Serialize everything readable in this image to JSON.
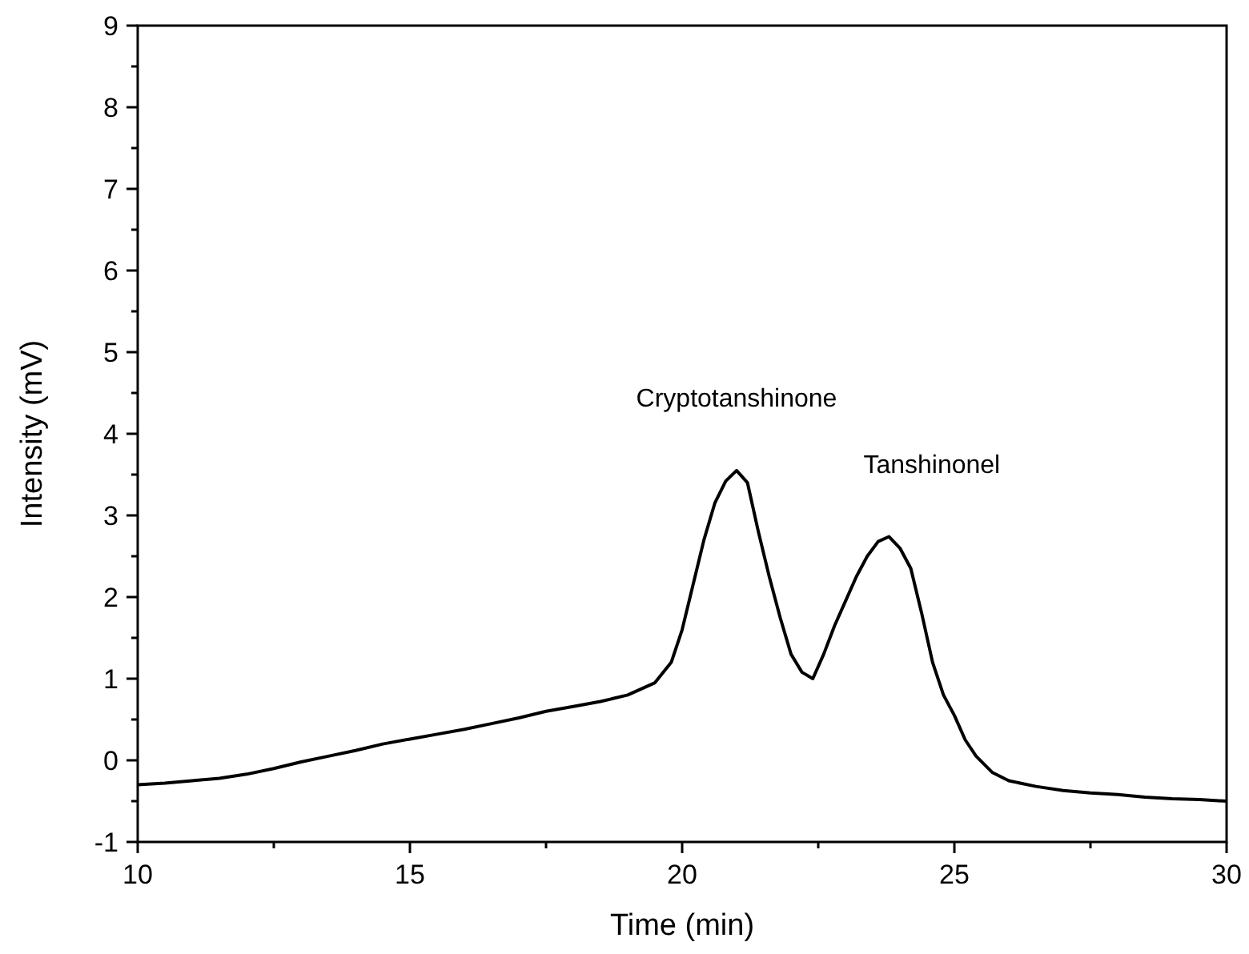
{
  "chart_data": {
    "type": "line",
    "xlabel": "Time (min)",
    "ylabel": "Intensity (mV)",
    "xlim": [
      10,
      30
    ],
    "ylim": [
      -1,
      9
    ],
    "xticks": [
      10,
      {
        "value": 12.5,
        "label": null
      },
      15,
      {
        "value": 17.5,
        "label": null
      },
      20,
      {
        "value": 22.5,
        "label": null
      },
      25,
      {
        "value": 27.5,
        "label": null
      },
      30
    ],
    "yticks": [
      -1,
      {
        "value": -0.5,
        "label": null
      },
      0,
      {
        "value": 0.5,
        "label": null
      },
      1,
      {
        "value": 1.5,
        "label": null
      },
      2,
      {
        "value": 2.5,
        "label": null
      },
      3,
      {
        "value": 3.5,
        "label": null
      },
      4,
      {
        "value": 4.5,
        "label": null
      },
      5,
      {
        "value": 5.5,
        "label": null
      },
      6,
      {
        "value": 6.5,
        "label": null
      },
      7,
      {
        "value": 7.5,
        "label": null
      },
      8,
      {
        "value": 8.5,
        "label": null
      },
      9
    ],
    "grid": false,
    "marker": "none",
    "line_style": "solid",
    "annotations": [
      {
        "text": "Cryptotanshinone",
        "x": 21.0,
        "y": 3.55
      },
      {
        "text": "Tanshinonel",
        "x": 23.8,
        "y": 2.74
      }
    ],
    "series": [
      {
        "color": "#000000",
        "x": [
          10,
          10.5,
          11,
          11.5,
          12,
          12.5,
          13,
          13.5,
          14,
          14.5,
          15,
          15.5,
          16,
          16.5,
          17,
          17.5,
          18,
          18.5,
          19,
          19.5,
          19.8,
          20,
          20.2,
          20.4,
          20.6,
          20.8,
          21,
          21.2,
          21.4,
          21.6,
          21.8,
          22,
          22.2,
          22.4,
          22.6,
          22.8,
          23,
          23.2,
          23.4,
          23.6,
          23.8,
          24,
          24.2,
          24.4,
          24.6,
          24.8,
          25,
          25.2,
          25.4,
          25.7,
          26,
          26.5,
          27,
          27.5,
          28,
          28.5,
          29,
          29.5,
          30
        ],
        "values": [
          -0.3,
          -0.28,
          -0.25,
          -0.22,
          -0.17,
          -0.1,
          -0.02,
          0.05,
          0.12,
          0.2,
          0.26,
          0.32,
          0.38,
          0.45,
          0.52,
          0.6,
          0.66,
          0.72,
          0.8,
          0.95,
          1.2,
          1.6,
          2.15,
          2.7,
          3.15,
          3.42,
          3.55,
          3.4,
          2.8,
          2.25,
          1.75,
          1.3,
          1.08,
          1.0,
          1.3,
          1.65,
          1.95,
          2.25,
          2.5,
          2.68,
          2.74,
          2.6,
          2.35,
          1.8,
          1.2,
          0.8,
          0.55,
          0.25,
          0.05,
          -0.15,
          -0.25,
          -0.32,
          -0.37,
          -0.4,
          -0.42,
          -0.45,
          -0.47,
          -0.48,
          -0.5
        ]
      }
    ]
  }
}
